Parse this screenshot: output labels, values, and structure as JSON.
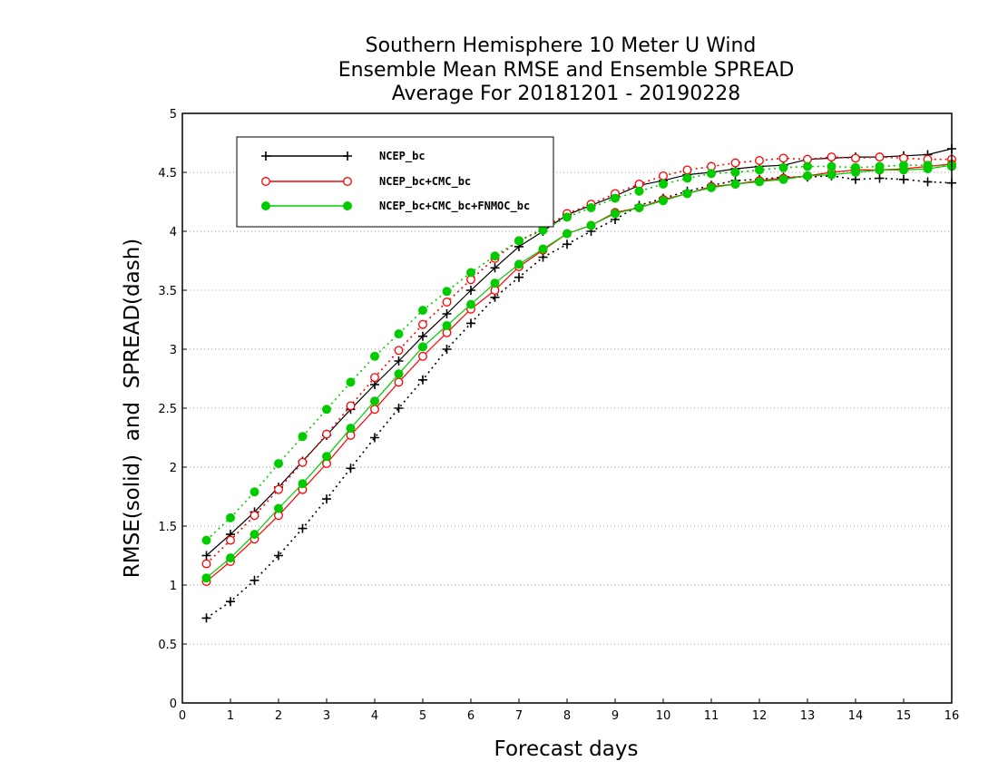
{
  "chart_data": {
    "type": "line",
    "title": [
      "Southern Hemisphere 10 Meter U Wind",
      "Ensemble Mean RMSE and Ensemble SPREAD",
      "Average For 20181201 - 20190228"
    ],
    "xlabel": "Forecast days",
    "ylabel": "RMSE(solid)  and  SPREAD(dash)",
    "xlim": [
      0,
      16
    ],
    "ylim": [
      0,
      5
    ],
    "xticks": [
      "0",
      "1",
      "2",
      "3",
      "4",
      "5",
      "6",
      "7",
      "8",
      "9",
      "10",
      "11",
      "12",
      "13",
      "14",
      "15",
      "16"
    ],
    "yticks": [
      "0",
      "0.5",
      "1",
      "1.5",
      "2",
      "2.5",
      "3",
      "3.5",
      "4",
      "4.5",
      "5"
    ],
    "grid": "horizontal dotted",
    "legend_position": "upper-left",
    "x": [
      0.5,
      1,
      1.5,
      2,
      2.5,
      3,
      3.5,
      4,
      4.5,
      5,
      5.5,
      6,
      6.5,
      7,
      7.5,
      8,
      8.5,
      9,
      9.5,
      10,
      10.5,
      11,
      11.5,
      12,
      12.5,
      13,
      13.5,
      14,
      14.5,
      15,
      15.5,
      16
    ],
    "series": [
      {
        "name": "NCEP_bc",
        "color": "#000000",
        "marker": "plus",
        "rmse": [
          1.25,
          1.43,
          1.62,
          1.83,
          2.05,
          2.27,
          2.49,
          2.7,
          2.9,
          3.11,
          3.3,
          3.5,
          3.69,
          3.87,
          4.0,
          4.14,
          4.22,
          4.3,
          4.39,
          4.43,
          4.48,
          4.5,
          4.53,
          4.55,
          4.56,
          4.61,
          4.62,
          4.63,
          4.63,
          4.64,
          4.65,
          4.7
        ],
        "spread": [
          0.72,
          0.86,
          1.04,
          1.25,
          1.48,
          1.73,
          1.99,
          2.25,
          2.5,
          2.74,
          3.0,
          3.22,
          3.44,
          3.61,
          3.78,
          3.89,
          4.0,
          4.1,
          4.22,
          4.28,
          4.34,
          4.39,
          4.43,
          4.44,
          4.46,
          4.46,
          4.47,
          4.44,
          4.45,
          4.44,
          4.42,
          4.41
        ]
      },
      {
        "name": "NCEP_bc+CMC_bc",
        "color": "#ff0000",
        "marker": "open-circle",
        "rmse": [
          1.03,
          1.2,
          1.39,
          1.59,
          1.81,
          2.03,
          2.27,
          2.49,
          2.72,
          2.94,
          3.14,
          3.34,
          3.5,
          3.7,
          3.84,
          3.98,
          4.05,
          4.16,
          4.2,
          4.27,
          4.32,
          4.38,
          4.4,
          4.43,
          4.45,
          4.47,
          4.5,
          4.52,
          4.52,
          4.53,
          4.55,
          4.57
        ],
        "spread": [
          1.18,
          1.38,
          1.59,
          1.81,
          2.04,
          2.28,
          2.52,
          2.76,
          2.99,
          3.21,
          3.4,
          3.59,
          3.77,
          3.92,
          4.02,
          4.15,
          4.23,
          4.32,
          4.4,
          4.47,
          4.52,
          4.55,
          4.58,
          4.6,
          4.62,
          4.61,
          4.63,
          4.62,
          4.63,
          4.62,
          4.61,
          4.61
        ]
      },
      {
        "name": "NCEP_bc+CMC_bc+FNMOC_bc",
        "color": "#00cc00",
        "marker": "filled-circle",
        "rmse": [
          1.06,
          1.23,
          1.43,
          1.65,
          1.86,
          2.09,
          2.33,
          2.56,
          2.79,
          3.02,
          3.2,
          3.38,
          3.56,
          3.72,
          3.85,
          3.98,
          4.05,
          4.15,
          4.2,
          4.26,
          4.32,
          4.37,
          4.4,
          4.42,
          4.44,
          4.47,
          4.48,
          4.5,
          4.52,
          4.52,
          4.53,
          4.56
        ],
        "spread": [
          1.38,
          1.57,
          1.79,
          2.03,
          2.26,
          2.49,
          2.72,
          2.94,
          3.13,
          3.33,
          3.49,
          3.65,
          3.79,
          3.92,
          4.01,
          4.12,
          4.2,
          4.28,
          4.34,
          4.4,
          4.45,
          4.49,
          4.5,
          4.52,
          4.54,
          4.55,
          4.55,
          4.54,
          4.55,
          4.56,
          4.56,
          4.55
        ]
      }
    ]
  }
}
